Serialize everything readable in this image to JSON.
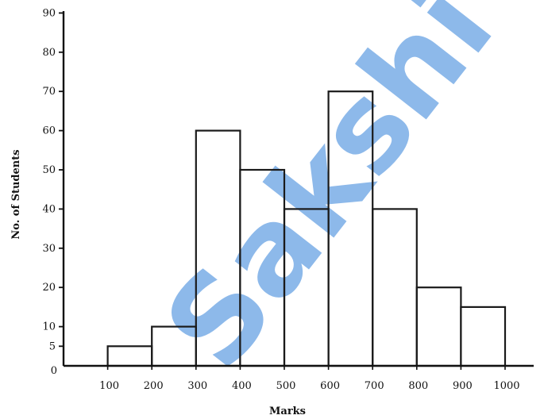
{
  "chart_data": {
    "type": "bar",
    "title": "",
    "xlabel": "Marks",
    "ylabel": "No. of Students",
    "x_origin_label": "0",
    "x_ticks": [
      "100",
      "200",
      "300",
      "400",
      "500",
      "600",
      "700",
      "800",
      "900",
      "1000"
    ],
    "y_ticks": [
      "5",
      "10",
      "20",
      "30",
      "40",
      "50",
      "60",
      "70",
      "80",
      "90"
    ],
    "y_origin_label": "0",
    "ylim": [
      0,
      90
    ],
    "xlim": [
      0,
      1000
    ],
    "bins": [
      {
        "from": 100,
        "to": 200,
        "value": 5
      },
      {
        "from": 200,
        "to": 300,
        "value": 10
      },
      {
        "from": 300,
        "to": 400,
        "value": 60
      },
      {
        "from": 400,
        "to": 500,
        "value": 50
      },
      {
        "from": 500,
        "to": 600,
        "value": 40
      },
      {
        "from": 600,
        "to": 700,
        "value": 70
      },
      {
        "from": 700,
        "to": 800,
        "value": 40
      },
      {
        "from": 800,
        "to": 900,
        "value": 20
      },
      {
        "from": 900,
        "to": 1000,
        "value": 15
      }
    ],
    "bar_fill": "#ffffff",
    "bar_stroke": "#1a1a1a",
    "grid": false
  },
  "watermark": {
    "text": "Sakshi",
    "color": "#2f7fd8"
  }
}
